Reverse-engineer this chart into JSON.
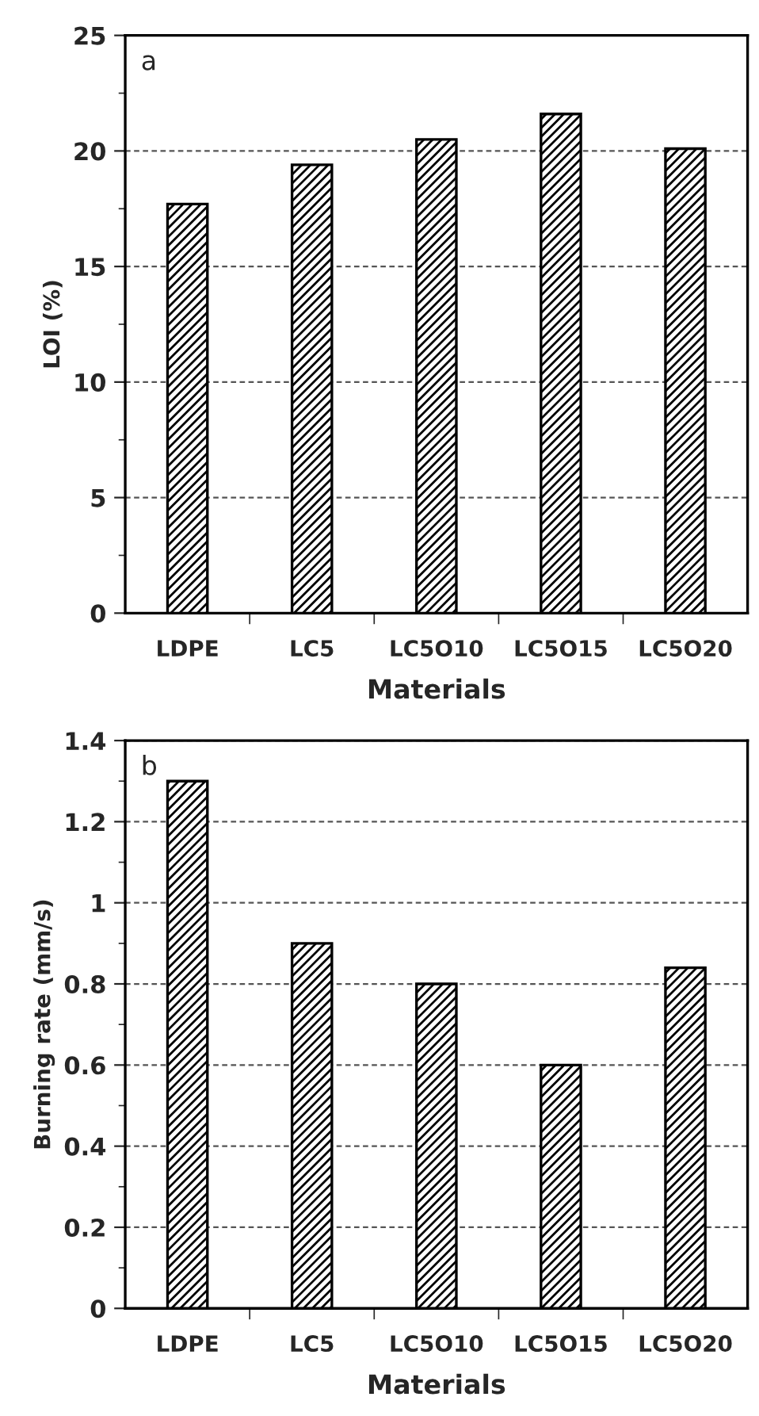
{
  "chart_data": [
    {
      "type": "bar",
      "categories": [
        "LDPE",
        "LC5",
        "LC5O10",
        "LC5O15",
        "LC5O20"
      ],
      "values": [
        17.7,
        19.4,
        20.5,
        21.6,
        20.1
      ],
      "color": "#000000",
      "xlabel": "Materials",
      "ylabel": "LOI (%)",
      "annotations": [
        "a"
      ],
      "ylim": [
        0,
        25
      ],
      "yticks": [
        0,
        {
          "value": 2.5,
          "label": null
        },
        5,
        {
          "value": 7.5,
          "label": null
        },
        10,
        {
          "value": 12.5,
          "label": null
        },
        15,
        {
          "value": 17.5,
          "label": null
        },
        20,
        {
          "value": 22.5,
          "label": null
        },
        25
      ],
      "grid": "y",
      "line_style": "dashed"
    },
    {
      "type": "bar",
      "categories": [
        "LDPE",
        "LC5",
        "LC5O10",
        "LC5O15",
        "LC5O20"
      ],
      "values": [
        1.3,
        0.9,
        0.8,
        0.6,
        0.84
      ],
      "color": "#000000",
      "xlabel": "Materials",
      "ylabel": "Burning rate (mm/s)",
      "annotations": [
        "b"
      ],
      "ylim": [
        0,
        1.4
      ],
      "yticks": [
        0,
        {
          "value": 0.1,
          "label": null
        },
        0.2,
        {
          "value": 0.3,
          "label": null
        },
        0.4,
        {
          "value": 0.5,
          "label": null
        },
        0.6,
        {
          "value": 0.7,
          "label": null
        },
        0.8,
        {
          "value": 0.9,
          "label": null
        },
        1,
        {
          "value": 1.1,
          "label": null
        },
        1.2,
        {
          "value": 1.3,
          "label": null
        },
        1.4
      ],
      "grid": "y",
      "line_style": "dashed"
    }
  ]
}
